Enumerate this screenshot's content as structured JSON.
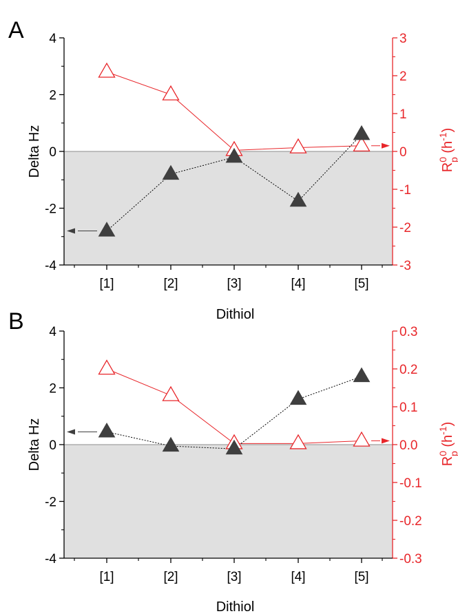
{
  "colors": {
    "delta_series": "#3f3f3f",
    "rate_series": "#e8262a",
    "shade": "#e0e0e0",
    "axis": "#000000"
  },
  "chart_data": [
    {
      "type": "scatter",
      "panel_label": "A",
      "xlabel": "Dithiol",
      "ylabel": "Delta Hz",
      "y2label": {
        "base": "R",
        "sub": "p",
        "sup": "0",
        "unit_open": " (h",
        "unit_sup": "-1",
        "unit_close": ")"
      },
      "categories": [
        "[1]",
        "[2]",
        "[3]",
        "[4]",
        "[5]"
      ],
      "ylim": [
        -4,
        4
      ],
      "y_ticks": [
        -4,
        -2,
        0,
        2,
        4
      ],
      "y_tick_labels": [
        "-4",
        "-2",
        "0",
        "2",
        "4"
      ],
      "y2lim": [
        -3,
        3
      ],
      "y2_ticks": [
        -3,
        -2,
        -1,
        0,
        1,
        2,
        3
      ],
      "y2_tick_labels": [
        "-3",
        "-2",
        "-1",
        "0",
        "1",
        "2",
        "3"
      ],
      "shaded_region": [
        -4,
        0
      ],
      "series": [
        {
          "axis": "left",
          "marker": "filled-triangle",
          "line": "dotted",
          "values": [
            -2.8,
            -0.8,
            -0.2,
            -1.75,
            0.6
          ]
        },
        {
          "axis": "right",
          "marker": "open-triangle",
          "line": "solid",
          "values": [
            2.1,
            1.5,
            0.03,
            0.1,
            0.15
          ]
        }
      ]
    },
    {
      "type": "scatter",
      "panel_label": "B",
      "xlabel": "Dithiol",
      "ylabel": "Delta Hz",
      "y2label": {
        "base": "R",
        "sub": "p",
        "sup": "0",
        "unit_open": " (h",
        "unit_sup": "-1",
        "unit_close": ")"
      },
      "categories": [
        "[1]",
        "[2]",
        "[3]",
        "[4]",
        "[5]"
      ],
      "ylim": [
        -4,
        4
      ],
      "y_ticks": [
        -4,
        -2,
        0,
        2,
        4
      ],
      "y_tick_labels": [
        "-4",
        "-2",
        "0",
        "2",
        "4"
      ],
      "y2lim": [
        -0.3,
        0.3
      ],
      "y2_ticks": [
        -0.3,
        -0.2,
        -0.1,
        0.0,
        0.1,
        0.2,
        0.3
      ],
      "y2_tick_labels": [
        "-0.3",
        "-0.2",
        "-0.1",
        "0.0",
        "0.1",
        "0.2",
        "0.3"
      ],
      "shaded_region": [
        -4,
        0
      ],
      "series": [
        {
          "axis": "left",
          "marker": "filled-triangle",
          "line": "dotted",
          "values": [
            0.45,
            -0.05,
            -0.15,
            1.6,
            2.4
          ]
        },
        {
          "axis": "right",
          "marker": "open-triangle",
          "line": "solid",
          "values": [
            0.2,
            0.13,
            0.003,
            0.003,
            0.01
          ]
        }
      ]
    }
  ]
}
